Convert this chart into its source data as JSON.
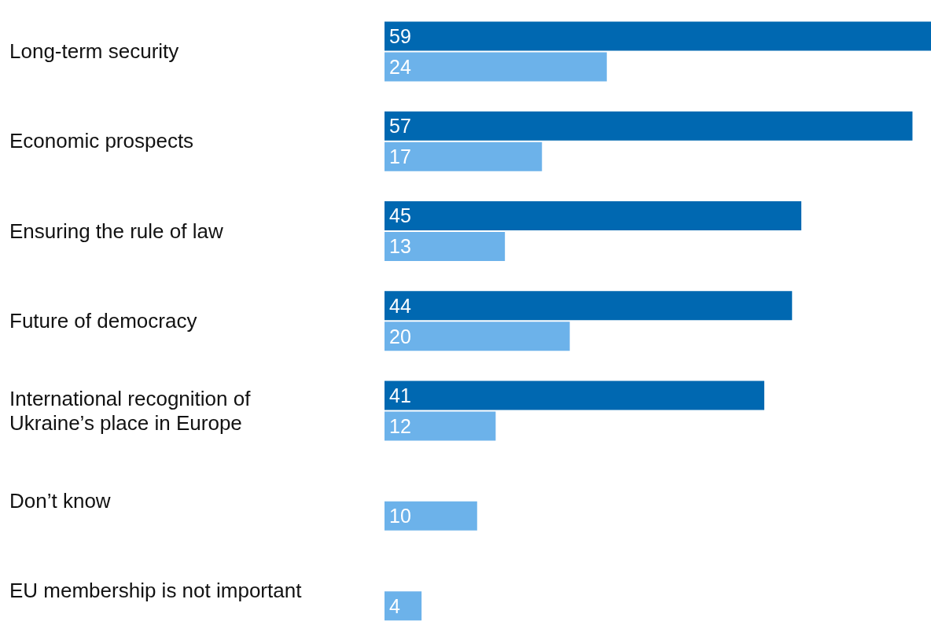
{
  "chart_data": {
    "type": "bar",
    "orientation": "horizontal",
    "categories": [
      "Long-term security",
      "Economic prospects",
      "Ensuring the rule of law",
      "Future of democracy",
      "International recognition of Ukraine’s place in Europe",
      "Don’t know",
      "EU membership is not important"
    ],
    "series": [
      {
        "color": "#0068b1",
        "values": [
          59,
          57,
          45,
          44,
          41,
          null,
          null
        ]
      },
      {
        "color": "#6cb2ea",
        "values": [
          24,
          17,
          13,
          20,
          12,
          10,
          4
        ]
      }
    ],
    "data_labels": true
  }
}
